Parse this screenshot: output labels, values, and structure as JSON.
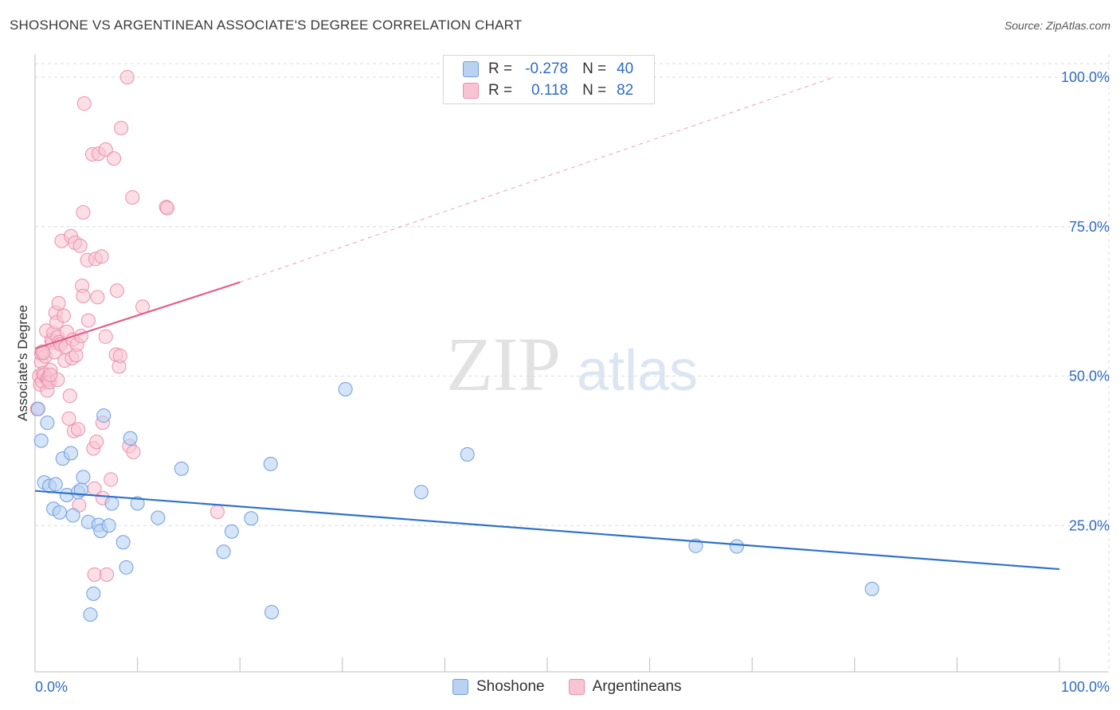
{
  "title": "SHOSHONE VS ARGENTINEAN ASSOCIATE'S DEGREE CORRELATION CHART",
  "source": "Source: ZipAtlas.com",
  "watermark": {
    "zip": "ZIP",
    "atlas": "atlas"
  },
  "legend": {
    "r_label": "R =",
    "n_label": "N =",
    "rows": [
      {
        "r": "-0.278",
        "n": "40"
      },
      {
        "r": "0.118",
        "n": "82"
      }
    ]
  },
  "colors": {
    "blue_fill": "#b9d2f2",
    "blue_stroke": "#6e9ee0",
    "blue_line": "#2f72c9",
    "pink_fill": "#f8c4d4",
    "pink_stroke": "#ec8fab",
    "pink_line": "#e35f8a",
    "axis_label": "#2f6bc4"
  },
  "chart_data": {
    "type": "scatter",
    "title": "SHOSHONE VS ARGENTINEAN ASSOCIATE'S DEGREE CORRELATION CHART",
    "xlabel": "",
    "ylabel": "Associate's Degree",
    "xlim": [
      0,
      100
    ],
    "ylim": [
      0,
      100
    ],
    "x_tick_labels": [
      "0.0%",
      "100.0%"
    ],
    "y_ticks": [
      {
        "value": 25,
        "label": "25.0%"
      },
      {
        "value": 50,
        "label": "50.0%"
      },
      {
        "value": 75,
        "label": "75.0%"
      },
      {
        "value": 100,
        "label": "100.0%"
      }
    ],
    "grid": true,
    "series": [
      {
        "name": "Shoshone",
        "r": -0.278,
        "n": 40,
        "trend": {
          "x0": 0,
          "y0": 30.8,
          "x1": 100,
          "y1": 17.7
        },
        "points": [
          [
            0.3,
            44.5
          ],
          [
            0.6,
            39.2
          ],
          [
            0.9,
            32.2
          ],
          [
            1.2,
            42.2
          ],
          [
            1.4,
            31.6
          ],
          [
            1.8,
            27.8
          ],
          [
            2.0,
            31.9
          ],
          [
            2.4,
            27.2
          ],
          [
            2.7,
            36.2
          ],
          [
            3.1,
            30.1
          ],
          [
            3.5,
            37.1
          ],
          [
            3.7,
            26.7
          ],
          [
            4.2,
            30.6
          ],
          [
            4.5,
            31.0
          ],
          [
            4.7,
            33.1
          ],
          [
            5.2,
            25.6
          ],
          [
            5.7,
            13.6
          ],
          [
            5.4,
            10.1
          ],
          [
            6.2,
            25.1
          ],
          [
            6.4,
            24.1
          ],
          [
            6.7,
            43.4
          ],
          [
            7.2,
            25.0
          ],
          [
            7.5,
            28.7
          ],
          [
            8.6,
            22.2
          ],
          [
            8.9,
            18.0
          ],
          [
            9.3,
            39.6
          ],
          [
            10.0,
            28.7
          ],
          [
            12.0,
            26.3
          ],
          [
            14.3,
            34.5
          ],
          [
            18.4,
            20.6
          ],
          [
            19.2,
            24.0
          ],
          [
            21.1,
            26.2
          ],
          [
            23.0,
            35.3
          ],
          [
            23.1,
            10.5
          ],
          [
            30.3,
            47.8
          ],
          [
            37.7,
            30.6
          ],
          [
            42.2,
            36.9
          ],
          [
            64.5,
            21.6
          ],
          [
            68.5,
            21.5
          ],
          [
            81.7,
            14.4
          ]
        ]
      },
      {
        "name": "Argentineans",
        "r": 0.118,
        "n": 82,
        "trend": {
          "x0": 0,
          "y0": 54.6,
          "x1": 20,
          "y1": 65.7
        },
        "trend_ext": {
          "x0": 20,
          "y0": 65.7,
          "x1": 78,
          "y1": 100
        },
        "points": [
          [
            0.2,
            44.5
          ],
          [
            0.4,
            50.0
          ],
          [
            0.5,
            48.6
          ],
          [
            0.6,
            52.4
          ],
          [
            0.6,
            53.8
          ],
          [
            0.7,
            49.1
          ],
          [
            0.7,
            54.1
          ],
          [
            0.8,
            50.5
          ],
          [
            0.9,
            50.2
          ],
          [
            1.0,
            53.3
          ],
          [
            1.1,
            57.6
          ],
          [
            1.2,
            49.6
          ],
          [
            1.2,
            47.6
          ],
          [
            1.3,
            49.4
          ],
          [
            1.4,
            49.0
          ],
          [
            1.5,
            51.0
          ],
          [
            1.6,
            56.0
          ],
          [
            1.7,
            55.6
          ],
          [
            1.8,
            57.2
          ],
          [
            1.9,
            54.0
          ],
          [
            2.0,
            60.6
          ],
          [
            2.1,
            59.0
          ],
          [
            2.2,
            56.5
          ],
          [
            2.2,
            49.4
          ],
          [
            2.3,
            62.2
          ],
          [
            2.4,
            55.7
          ],
          [
            2.5,
            55.3
          ],
          [
            2.6,
            72.6
          ],
          [
            2.8,
            60.1
          ],
          [
            2.9,
            52.6
          ],
          [
            3.0,
            54.9
          ],
          [
            3.1,
            57.4
          ],
          [
            3.3,
            42.9
          ],
          [
            3.4,
            46.7
          ],
          [
            3.5,
            73.4
          ],
          [
            3.6,
            53.0
          ],
          [
            3.7,
            56.1
          ],
          [
            3.8,
            40.8
          ],
          [
            3.9,
            72.3
          ],
          [
            4.0,
            53.5
          ],
          [
            4.1,
            55.3
          ],
          [
            4.2,
            41.1
          ],
          [
            4.3,
            28.4
          ],
          [
            4.4,
            71.8
          ],
          [
            4.5,
            56.7
          ],
          [
            4.6,
            65.1
          ],
          [
            4.7,
            63.4
          ],
          [
            4.7,
            77.4
          ],
          [
            4.8,
            95.6
          ],
          [
            5.1,
            69.4
          ],
          [
            5.2,
            59.3
          ],
          [
            5.6,
            87.1
          ],
          [
            5.7,
            37.9
          ],
          [
            5.8,
            16.8
          ],
          [
            5.8,
            31.2
          ],
          [
            5.9,
            69.6
          ],
          [
            6.0,
            39.0
          ],
          [
            6.1,
            63.2
          ],
          [
            6.2,
            87.2
          ],
          [
            6.5,
            70.0
          ],
          [
            6.6,
            42.2
          ],
          [
            6.6,
            29.6
          ],
          [
            6.9,
            56.6
          ],
          [
            6.9,
            87.9
          ],
          [
            7.0,
            16.8
          ],
          [
            7.4,
            32.7
          ],
          [
            7.7,
            86.4
          ],
          [
            7.9,
            53.6
          ],
          [
            8.0,
            64.3
          ],
          [
            8.2,
            51.6
          ],
          [
            8.3,
            53.4
          ],
          [
            8.4,
            91.5
          ],
          [
            9.0,
            100.0
          ],
          [
            9.2,
            38.3
          ],
          [
            9.5,
            79.9
          ],
          [
            9.6,
            37.3
          ],
          [
            10.5,
            61.6
          ],
          [
            12.8,
            78.3
          ],
          [
            12.9,
            78.1
          ],
          [
            17.8,
            27.3
          ],
          [
            0.8,
            53.9
          ],
          [
            1.5,
            50.2
          ]
        ]
      }
    ]
  }
}
